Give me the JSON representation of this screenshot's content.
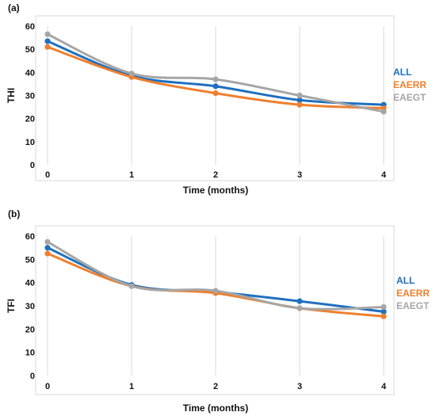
{
  "chart_data": [
    {
      "type": "line",
      "panel_label": "(a)",
      "xlabel": "Time (months)",
      "ylabel": "THI",
      "x": [
        0,
        1,
        2,
        3,
        4
      ],
      "ylim": [
        0,
        60
      ],
      "yticks": [
        0,
        10,
        20,
        30,
        40,
        50,
        60
      ],
      "grid": "vertical",
      "legend_position": "right",
      "series": [
        {
          "name": "ALL",
          "color": "#1f6fbf",
          "values": [
            53.5,
            38.5,
            34,
            28,
            26
          ]
        },
        {
          "name": "EAERR",
          "color": "#f07f2d",
          "values": [
            51,
            38,
            31,
            26,
            24.5
          ]
        },
        {
          "name": "EAEGT",
          "color": "#a6a6a6",
          "values": [
            56.5,
            39.5,
            37,
            30,
            23
          ]
        }
      ]
    },
    {
      "type": "line",
      "panel_label": "(b)",
      "xlabel": "Time (months)",
      "ylabel": "TFI",
      "x": [
        0,
        1,
        2,
        3,
        4
      ],
      "ylim": [
        0,
        60
      ],
      "yticks": [
        0,
        10,
        20,
        30,
        40,
        50,
        60
      ],
      "grid": "vertical",
      "legend_position": "right",
      "series": [
        {
          "name": "ALL",
          "color": "#1f6fbf",
          "values": [
            55,
            39,
            36,
            32,
            27.5
          ]
        },
        {
          "name": "EAERR",
          "color": "#f07f2d",
          "values": [
            52.5,
            38.5,
            35.5,
            29,
            25.5
          ]
        },
        {
          "name": "EAEGT",
          "color": "#a6a6a6",
          "values": [
            57.5,
            38.5,
            36.5,
            29,
            29.5
          ]
        }
      ]
    }
  ]
}
